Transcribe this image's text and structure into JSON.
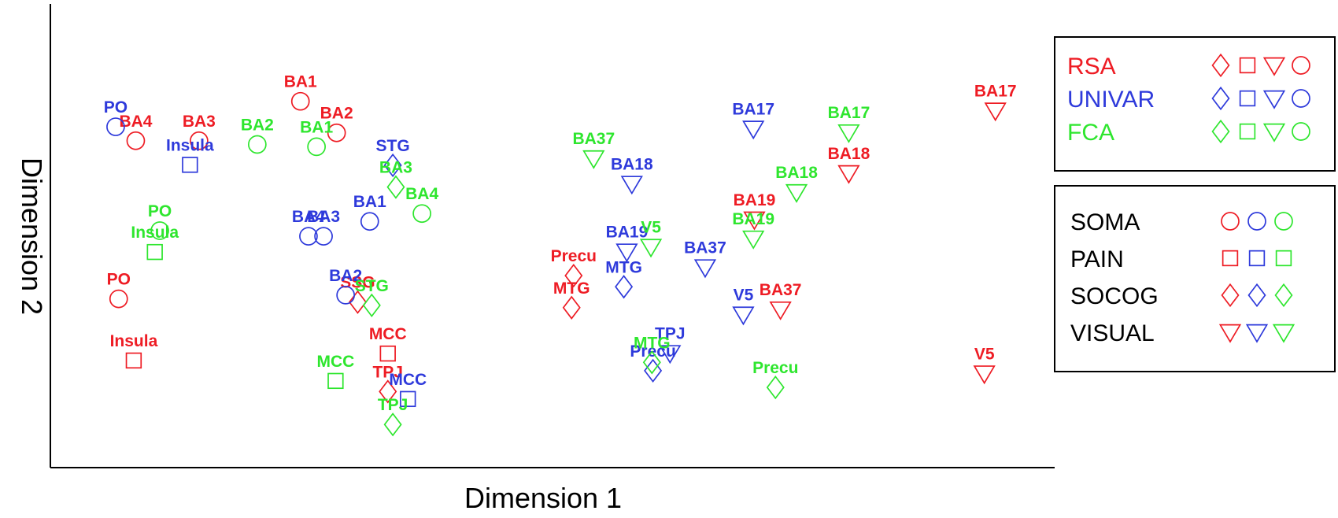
{
  "chart_data": {
    "type": "scatter",
    "title": "",
    "xlabel": "Dimension 1",
    "ylabel": "Dimension 2",
    "grid": false,
    "axes_drawn": [
      "left",
      "bottom"
    ],
    "xlim": [
      0,
      1000
    ],
    "ylim": [
      0,
      1000
    ],
    "colors": {
      "RSA": "#ee1c24",
      "UNIVAR": "#2e3adb",
      "FCA": "#2ee62e"
    },
    "series": [
      {
        "name": "RSA",
        "points": [
          {
            "label": "BA4",
            "type": "SOMA",
            "x": 85,
            "y": 705
          },
          {
            "label": "BA3",
            "type": "SOMA",
            "x": 148,
            "y": 705
          },
          {
            "label": "BA1",
            "type": "SOMA",
            "x": 249,
            "y": 790
          },
          {
            "label": "BA2",
            "type": "SOMA",
            "x": 285,
            "y": 722
          },
          {
            "label": "PO",
            "type": "SOMA",
            "x": 68,
            "y": 364
          },
          {
            "label": "Insula",
            "type": "PAIN",
            "x": 83,
            "y": 231
          },
          {
            "label": "SSG",
            "type": "SOCOG",
            "x": 306,
            "y": 357
          },
          {
            "label": "MCC",
            "type": "PAIN",
            "x": 336,
            "y": 246
          },
          {
            "label": "TPJ",
            "type": "SOCOG",
            "x": 336,
            "y": 164
          },
          {
            "label": "Precu",
            "type": "SOCOG",
            "x": 521,
            "y": 414
          },
          {
            "label": "MTG",
            "type": "SOCOG",
            "x": 519,
            "y": 345
          },
          {
            "label": "BA17",
            "type": "VISUAL",
            "x": 941,
            "y": 770
          },
          {
            "label": "BA18",
            "type": "VISUAL",
            "x": 795,
            "y": 635
          },
          {
            "label": "BA19",
            "type": "VISUAL",
            "x": 701,
            "y": 535
          },
          {
            "label": "BA37",
            "type": "VISUAL",
            "x": 727,
            "y": 341
          },
          {
            "label": "V5",
            "type": "VISUAL",
            "x": 930,
            "y": 203
          }
        ]
      },
      {
        "name": "UNIVAR",
        "points": [
          {
            "label": "PO",
            "type": "SOMA",
            "x": 65,
            "y": 735
          },
          {
            "label": "Insula",
            "type": "PAIN",
            "x": 139,
            "y": 653
          },
          {
            "label": "STG",
            "type": "SOCOG",
            "x": 341,
            "y": 652
          },
          {
            "label": "BA1",
            "type": "SOMA",
            "x": 318,
            "y": 531
          },
          {
            "label": "BA4",
            "type": "SOMA",
            "x": 257,
            "y": 499
          },
          {
            "label": "BA3",
            "type": "SOMA",
            "x": 272,
            "y": 499
          },
          {
            "label": "BA2",
            "type": "SOMA",
            "x": 294,
            "y": 372
          },
          {
            "label": "MCC",
            "type": "PAIN",
            "x": 356,
            "y": 148
          },
          {
            "label": "BA18",
            "type": "VISUAL",
            "x": 579,
            "y": 612
          },
          {
            "label": "BA19",
            "type": "VISUAL",
            "x": 574,
            "y": 466
          },
          {
            "label": "MTG",
            "type": "SOCOG",
            "x": 571,
            "y": 390
          },
          {
            "label": "BA37",
            "type": "VISUAL",
            "x": 652,
            "y": 432
          },
          {
            "label": "BA17",
            "type": "VISUAL",
            "x": 700,
            "y": 731
          },
          {
            "label": "V5",
            "type": "VISUAL",
            "x": 690,
            "y": 330
          },
          {
            "label": "TPJ",
            "type": "VISUAL",
            "x": 617,
            "y": 247
          },
          {
            "label": "Precu",
            "type": "SOCOG",
            "x": 600,
            "y": 209
          }
        ]
      },
      {
        "name": "FCA",
        "points": [
          {
            "label": "BA2",
            "type": "SOMA",
            "x": 206,
            "y": 697
          },
          {
            "label": "BA1",
            "type": "SOMA",
            "x": 265,
            "y": 692
          },
          {
            "label": "BA3",
            "type": "SOCOG",
            "x": 344,
            "y": 605
          },
          {
            "label": "BA4",
            "type": "SOMA",
            "x": 370,
            "y": 548
          },
          {
            "label": "PO",
            "type": "SOMA",
            "x": 109,
            "y": 511
          },
          {
            "label": "Insula",
            "type": "PAIN",
            "x": 104,
            "y": 465
          },
          {
            "label": "STG",
            "type": "SOCOG",
            "x": 320,
            "y": 350
          },
          {
            "label": "MCC",
            "type": "PAIN",
            "x": 284,
            "y": 187
          },
          {
            "label": "TPJ",
            "type": "SOCOG",
            "x": 341,
            "y": 93
          },
          {
            "label": "BA37",
            "type": "VISUAL",
            "x": 541,
            "y": 667
          },
          {
            "label": "V5",
            "type": "VISUAL",
            "x": 598,
            "y": 476
          },
          {
            "label": "MTG",
            "type": "SOCOG",
            "x": 599,
            "y": 227
          },
          {
            "label": "BA17",
            "type": "VISUAL",
            "x": 795,
            "y": 723
          },
          {
            "label": "BA18",
            "type": "VISUAL",
            "x": 743,
            "y": 594
          },
          {
            "label": "BA19",
            "type": "VISUAL",
            "x": 700,
            "y": 494
          },
          {
            "label": "Precu",
            "type": "SOCOG",
            "x": 722,
            "y": 173
          }
        ]
      }
    ],
    "legend_methods": {
      "placement": "top-right",
      "entries": [
        {
          "name": "RSA",
          "color": "#ee1c24"
        },
        {
          "name": "UNIVAR",
          "color": "#2e3adb"
        },
        {
          "name": "FCA",
          "color": "#2ee62e"
        }
      ],
      "symbols": [
        "diamond",
        "square",
        "triangle-down",
        "circle"
      ]
    },
    "legend_types": {
      "placement": "right",
      "entries": [
        {
          "name": "SOMA",
          "symbol": "circle"
        },
        {
          "name": "PAIN",
          "symbol": "square"
        },
        {
          "name": "SOCOG",
          "symbol": "diamond"
        },
        {
          "name": "VISUAL",
          "symbol": "triangle-down"
        }
      ],
      "colors": [
        "#ee1c24",
        "#2e3adb",
        "#2ee62e"
      ]
    }
  }
}
